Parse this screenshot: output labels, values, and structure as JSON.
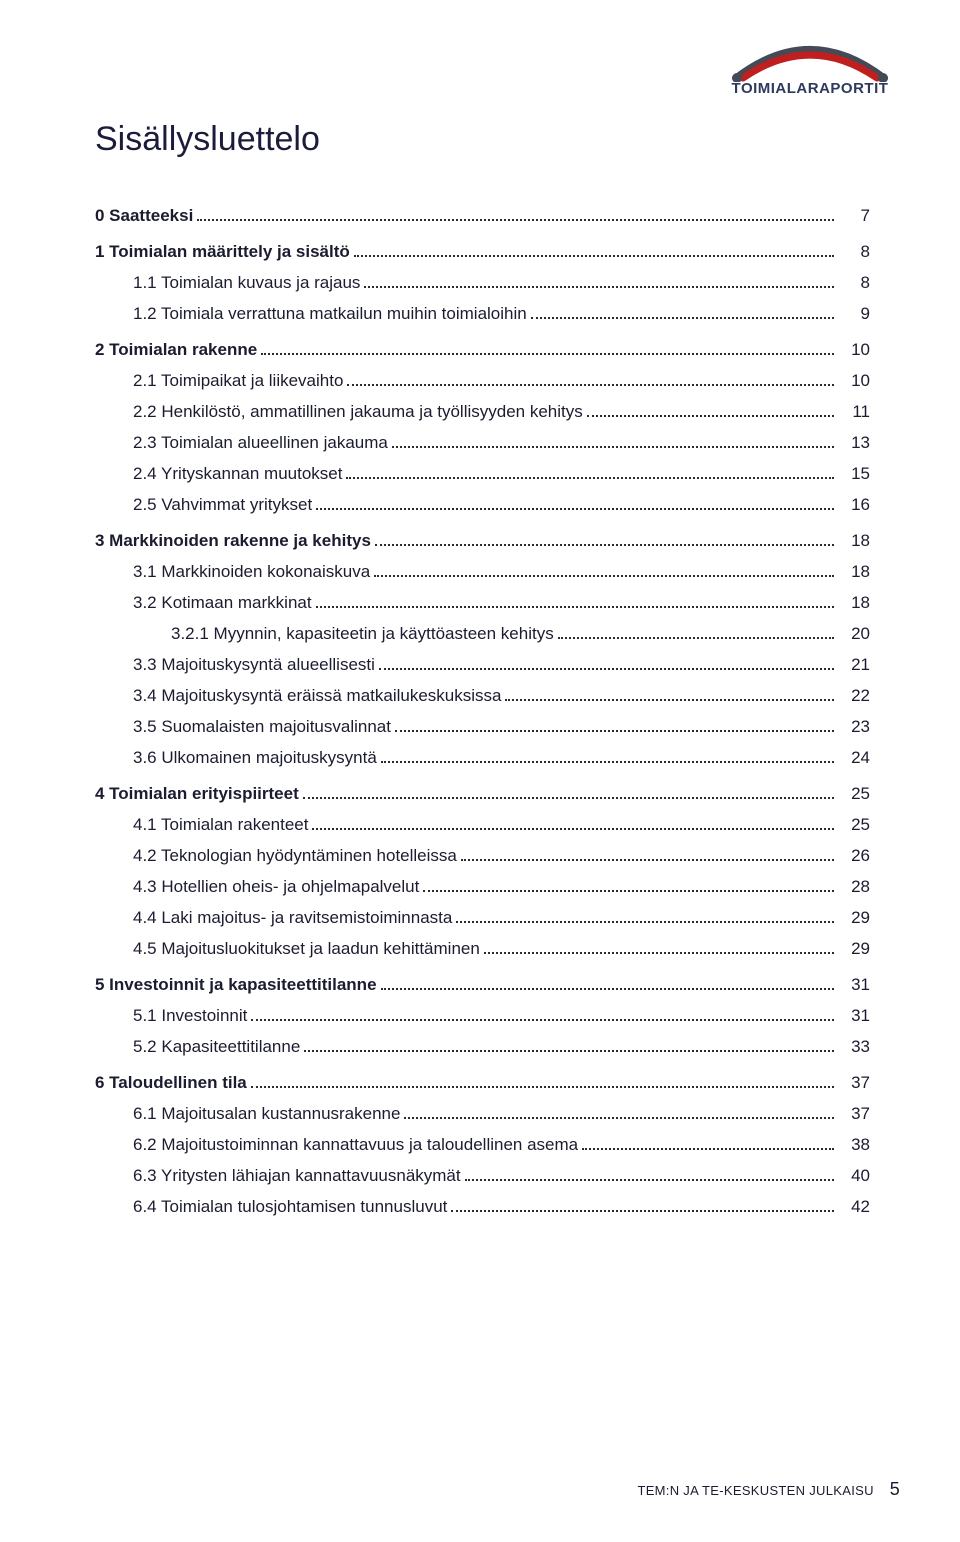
{
  "logo": {
    "brand_text": "TOIMIALARAPORTIT"
  },
  "title": "Sisällysluettelo",
  "toc": [
    {
      "level": 0,
      "bold": true,
      "label": "0 Saatteeksi",
      "page": "7"
    },
    {
      "level": 0,
      "bold": true,
      "label": "1 Toimialan määrittely ja sisältö",
      "page": "8"
    },
    {
      "level": 1,
      "bold": false,
      "label": "1.1 Toimialan kuvaus ja rajaus",
      "page": "8"
    },
    {
      "level": 1,
      "bold": false,
      "label": "1.2 Toimiala verrattuna matkailun muihin toimialoihin",
      "page": "9"
    },
    {
      "level": 0,
      "bold": true,
      "label": "2 Toimialan rakenne",
      "page": "10"
    },
    {
      "level": 1,
      "bold": false,
      "label": "2.1 Toimipaikat ja liikevaihto",
      "page": "10"
    },
    {
      "level": 1,
      "bold": false,
      "label": "2.2 Henkilöstö, ammatillinen jakauma ja työllisyyden kehitys",
      "page": "11"
    },
    {
      "level": 1,
      "bold": false,
      "label": "2.3 Toimialan alueellinen jakauma",
      "page": "13"
    },
    {
      "level": 1,
      "bold": false,
      "label": "2.4 Yrityskannan muutokset",
      "page": "15"
    },
    {
      "level": 1,
      "bold": false,
      "label": "2.5 Vahvimmat yritykset",
      "page": "16"
    },
    {
      "level": 0,
      "bold": true,
      "label": "3 Markkinoiden rakenne ja kehitys",
      "page": "18"
    },
    {
      "level": 1,
      "bold": false,
      "label": "3.1 Markkinoiden kokonaiskuva",
      "page": "18"
    },
    {
      "level": 1,
      "bold": false,
      "label": "3.2 Kotimaan markkinat",
      "page": "18"
    },
    {
      "level": 2,
      "bold": false,
      "label": "3.2.1 Myynnin, kapasiteetin ja käyttöasteen kehitys",
      "page": "20"
    },
    {
      "level": 1,
      "bold": false,
      "label": "3.3 Majoituskysyntä alueellisesti",
      "page": "21"
    },
    {
      "level": 1,
      "bold": false,
      "label": "3.4 Majoituskysyntä eräissä matkailukeskuksissa",
      "page": "22"
    },
    {
      "level": 1,
      "bold": false,
      "label": "3.5 Suomalaisten majoitusvalinnat",
      "page": "23"
    },
    {
      "level": 1,
      "bold": false,
      "label": "3.6 Ulkomainen majoituskysyntä",
      "page": "24"
    },
    {
      "level": 0,
      "bold": true,
      "label": "4 Toimialan erityispiirteet",
      "page": "25"
    },
    {
      "level": 1,
      "bold": false,
      "label": "4.1 Toimialan rakenteet",
      "page": "25"
    },
    {
      "level": 1,
      "bold": false,
      "label": "4.2 Teknologian hyödyntäminen hotelleissa",
      "page": "26"
    },
    {
      "level": 1,
      "bold": false,
      "label": "4.3 Hotellien oheis- ja ohjelmapalvelut",
      "page": "28"
    },
    {
      "level": 1,
      "bold": false,
      "label": "4.4 Laki majoitus- ja ravitsemistoiminnasta",
      "page": "29"
    },
    {
      "level": 1,
      "bold": false,
      "label": "4.5 Majoitusluokitukset ja laadun kehittäminen",
      "page": "29"
    },
    {
      "level": 0,
      "bold": true,
      "label": "5 Investoinnit ja kapasiteettitilanne",
      "page": "31"
    },
    {
      "level": 1,
      "bold": false,
      "label": "5.1 Investoinnit",
      "page": "31"
    },
    {
      "level": 1,
      "bold": false,
      "label": "5.2  Kapasiteettitilanne",
      "page": "33"
    },
    {
      "level": 0,
      "bold": true,
      "label": "6 Taloudellinen tila",
      "page": "37"
    },
    {
      "level": 1,
      "bold": false,
      "label": "6.1 Majoitusalan kustannusrakenne",
      "page": "37"
    },
    {
      "level": 1,
      "bold": false,
      "label": "6.2 Majoitustoiminnan kannattavuus ja taloudellinen asema",
      "page": "38"
    },
    {
      "level": 1,
      "bold": false,
      "label": "6.3 Yritysten lähiajan kannattavuusnäkymät",
      "page": "40"
    },
    {
      "level": 1,
      "bold": false,
      "label": "6.4 Toimialan tulosjohtamisen tunnusluvut",
      "page": "42"
    }
  ],
  "footer": {
    "text": "TEM:N JA TE-KESKUSTEN JULKAISU",
    "page_number": "5"
  },
  "colors": {
    "text": "#1b1c2f",
    "logo_arc_outer": "#444a56",
    "logo_arc_inner": "#c01f1f",
    "logo_text": "#2b3a5e",
    "background": "#ffffff"
  }
}
